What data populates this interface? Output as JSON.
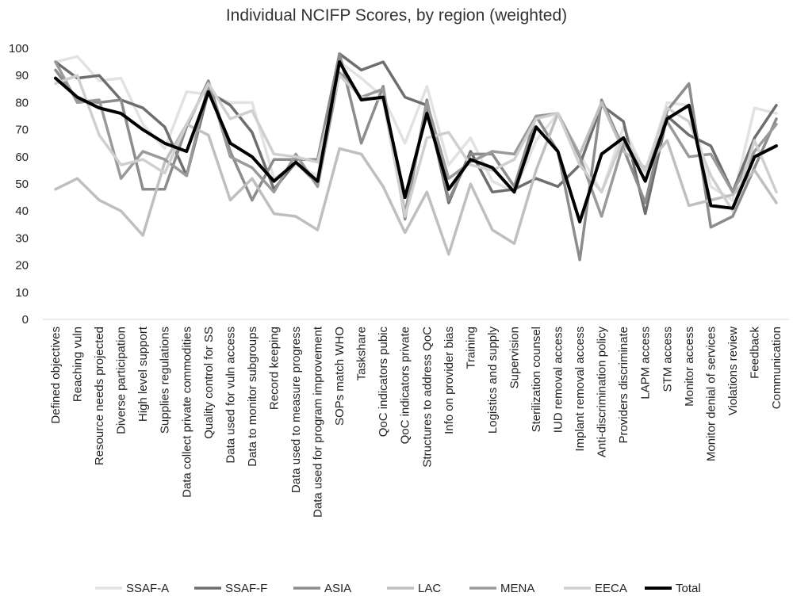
{
  "chart_data": {
    "type": "line",
    "title": "Individual NCIFP Scores, by region (weighted)",
    "ylim": [
      0,
      100
    ],
    "yticks": [
      0,
      10,
      20,
      30,
      40,
      50,
      60,
      70,
      80,
      90,
      100
    ],
    "grid": false,
    "legend": "bottom",
    "categories": [
      "Defined objectives",
      "Reaching vuln",
      "Resource needs projected",
      "Diverse participation",
      "High level support",
      "Supplies regulations",
      "Data collect private commodities",
      "Quality control for SS",
      "Data used for vuln access",
      "Data to monitor subgroups",
      "Record keeping",
      "Data used to measure progress",
      "Data used for program improvement",
      "SOPs match WHO",
      "Taskshare",
      "QoC indicators pubic",
      "QoC indicators private",
      "Structures to address QoC",
      "Info on provider bias",
      "Training",
      "Logistics and supply",
      "Supervision",
      "Sterilization counsel",
      "IUD removal access",
      "Implant removal access",
      "Anti-discrimination policy",
      "Providers discriminate",
      "LAPM access",
      "STM access",
      "Monitor access",
      "Monitor denial of services",
      "Violations review",
      "Feedback",
      "Communication"
    ],
    "series": [
      {
        "name": "SSAF-A",
        "color": "#e2e2e2",
        "width": 3.5,
        "values": [
          95,
          97,
          88,
          89,
          72,
          63,
          84,
          83,
          80,
          80,
          52,
          57,
          53,
          95,
          89,
          82,
          65,
          86,
          57,
          67,
          51,
          47,
          66,
          76,
          61,
          47,
          71,
          54,
          80,
          79,
          49,
          44,
          78,
          76
        ]
      },
      {
        "name": "SSAF-F",
        "color": "#6e6e6e",
        "width": 3.5,
        "values": [
          95,
          89,
          90,
          81,
          78,
          71,
          53,
          84,
          79,
          69,
          48,
          58,
          50,
          98,
          92,
          95,
          82,
          79,
          43,
          62,
          47,
          48,
          52,
          49,
          57,
          79,
          73,
          39,
          75,
          68,
          64,
          47,
          67,
          79
        ]
      },
      {
        "name": "ASIA",
        "color": "#8c8c8c",
        "width": 3.5,
        "values": [
          92,
          81,
          80,
          81,
          48,
          48,
          71,
          88,
          62,
          44,
          59,
          59,
          59,
          98,
          65,
          86,
          37,
          81,
          44,
          61,
          61,
          49,
          75,
          62,
          22,
          81,
          63,
          43,
          77,
          87,
          34,
          38,
          56,
          74
        ]
      },
      {
        "name": "LAC",
        "color": "#bfbfbf",
        "width": 3.5,
        "values": [
          48,
          52,
          44,
          40,
          31,
          58,
          72,
          68,
          44,
          52,
          39,
          38,
          33,
          63,
          61,
          49,
          32,
          47,
          24,
          50,
          33,
          28,
          55,
          76,
          61,
          80,
          62,
          56,
          66,
          42,
          44,
          46,
          55,
          43
        ]
      },
      {
        "name": "MENA",
        "color": "#9a9a9a",
        "width": 3.5,
        "values": [
          95,
          80,
          81,
          52,
          62,
          59,
          53,
          87,
          60,
          56,
          47,
          61,
          49,
          91,
          82,
          85,
          39,
          80,
          52,
          58,
          62,
          61,
          75,
          76,
          60,
          38,
          65,
          55,
          73,
          60,
          61,
          47,
          62,
          72
        ]
      },
      {
        "name": "EECA",
        "color": "#cfcfcf",
        "width": 3.5,
        "values": [
          87,
          90,
          68,
          57,
          59,
          54,
          72,
          87,
          74,
          77,
          61,
          60,
          58,
          90,
          82,
          81,
          38,
          67,
          69,
          57,
          55,
          59,
          74,
          76,
          57,
          47,
          67,
          55,
          78,
          73,
          53,
          40,
          66,
          47
        ]
      },
      {
        "name": "Total",
        "color": "#000000",
        "width": 4,
        "values": [
          89,
          82,
          78,
          76,
          70,
          65,
          62,
          84,
          65,
          60,
          51,
          58,
          51,
          95,
          81,
          82,
          45,
          76,
          48,
          59,
          56,
          47,
          71,
          62,
          36,
          61,
          67,
          51,
          74,
          79,
          42,
          41,
          60,
          64
        ]
      }
    ]
  }
}
